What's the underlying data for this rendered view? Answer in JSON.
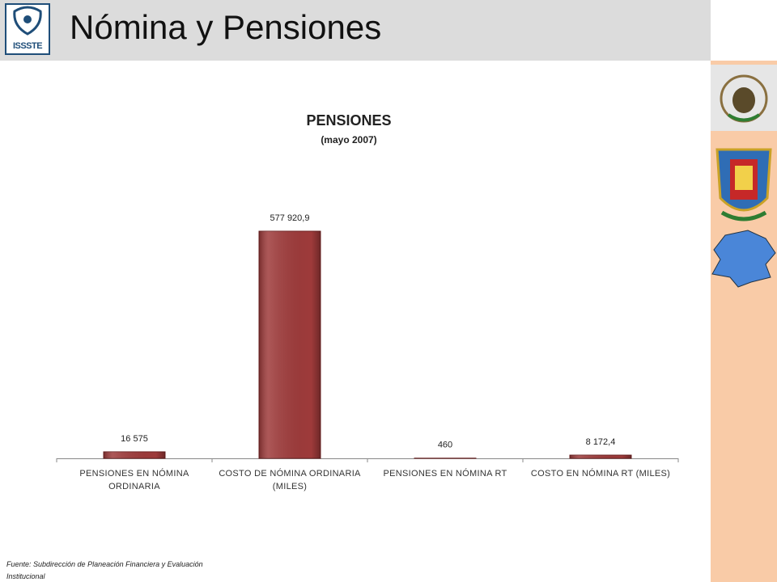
{
  "header": {
    "title": "Nómina y Pensiones",
    "logo": "ISSSTE"
  },
  "source": "Fuente: Subdirección de Planeación Financiera y Evaluación Institucional",
  "chart_data": {
    "type": "bar",
    "title": "PENSIONES",
    "subtitle": "(mayo 2007)",
    "categories": [
      "PENSIONES EN NÓMINA ORDINARIA",
      "COSTO DE NÓMINA ORDINARIA (MILES)",
      "PENSIONES EN NÓMINA RT",
      "COSTO EN NÓMINA RT (MILES)"
    ],
    "values": [
      16575,
      577920.9,
      460,
      8172.4
    ],
    "value_labels": [
      "16 575",
      "577 920,9",
      "460",
      "8 172,4"
    ],
    "color": "#9e3a3a"
  }
}
